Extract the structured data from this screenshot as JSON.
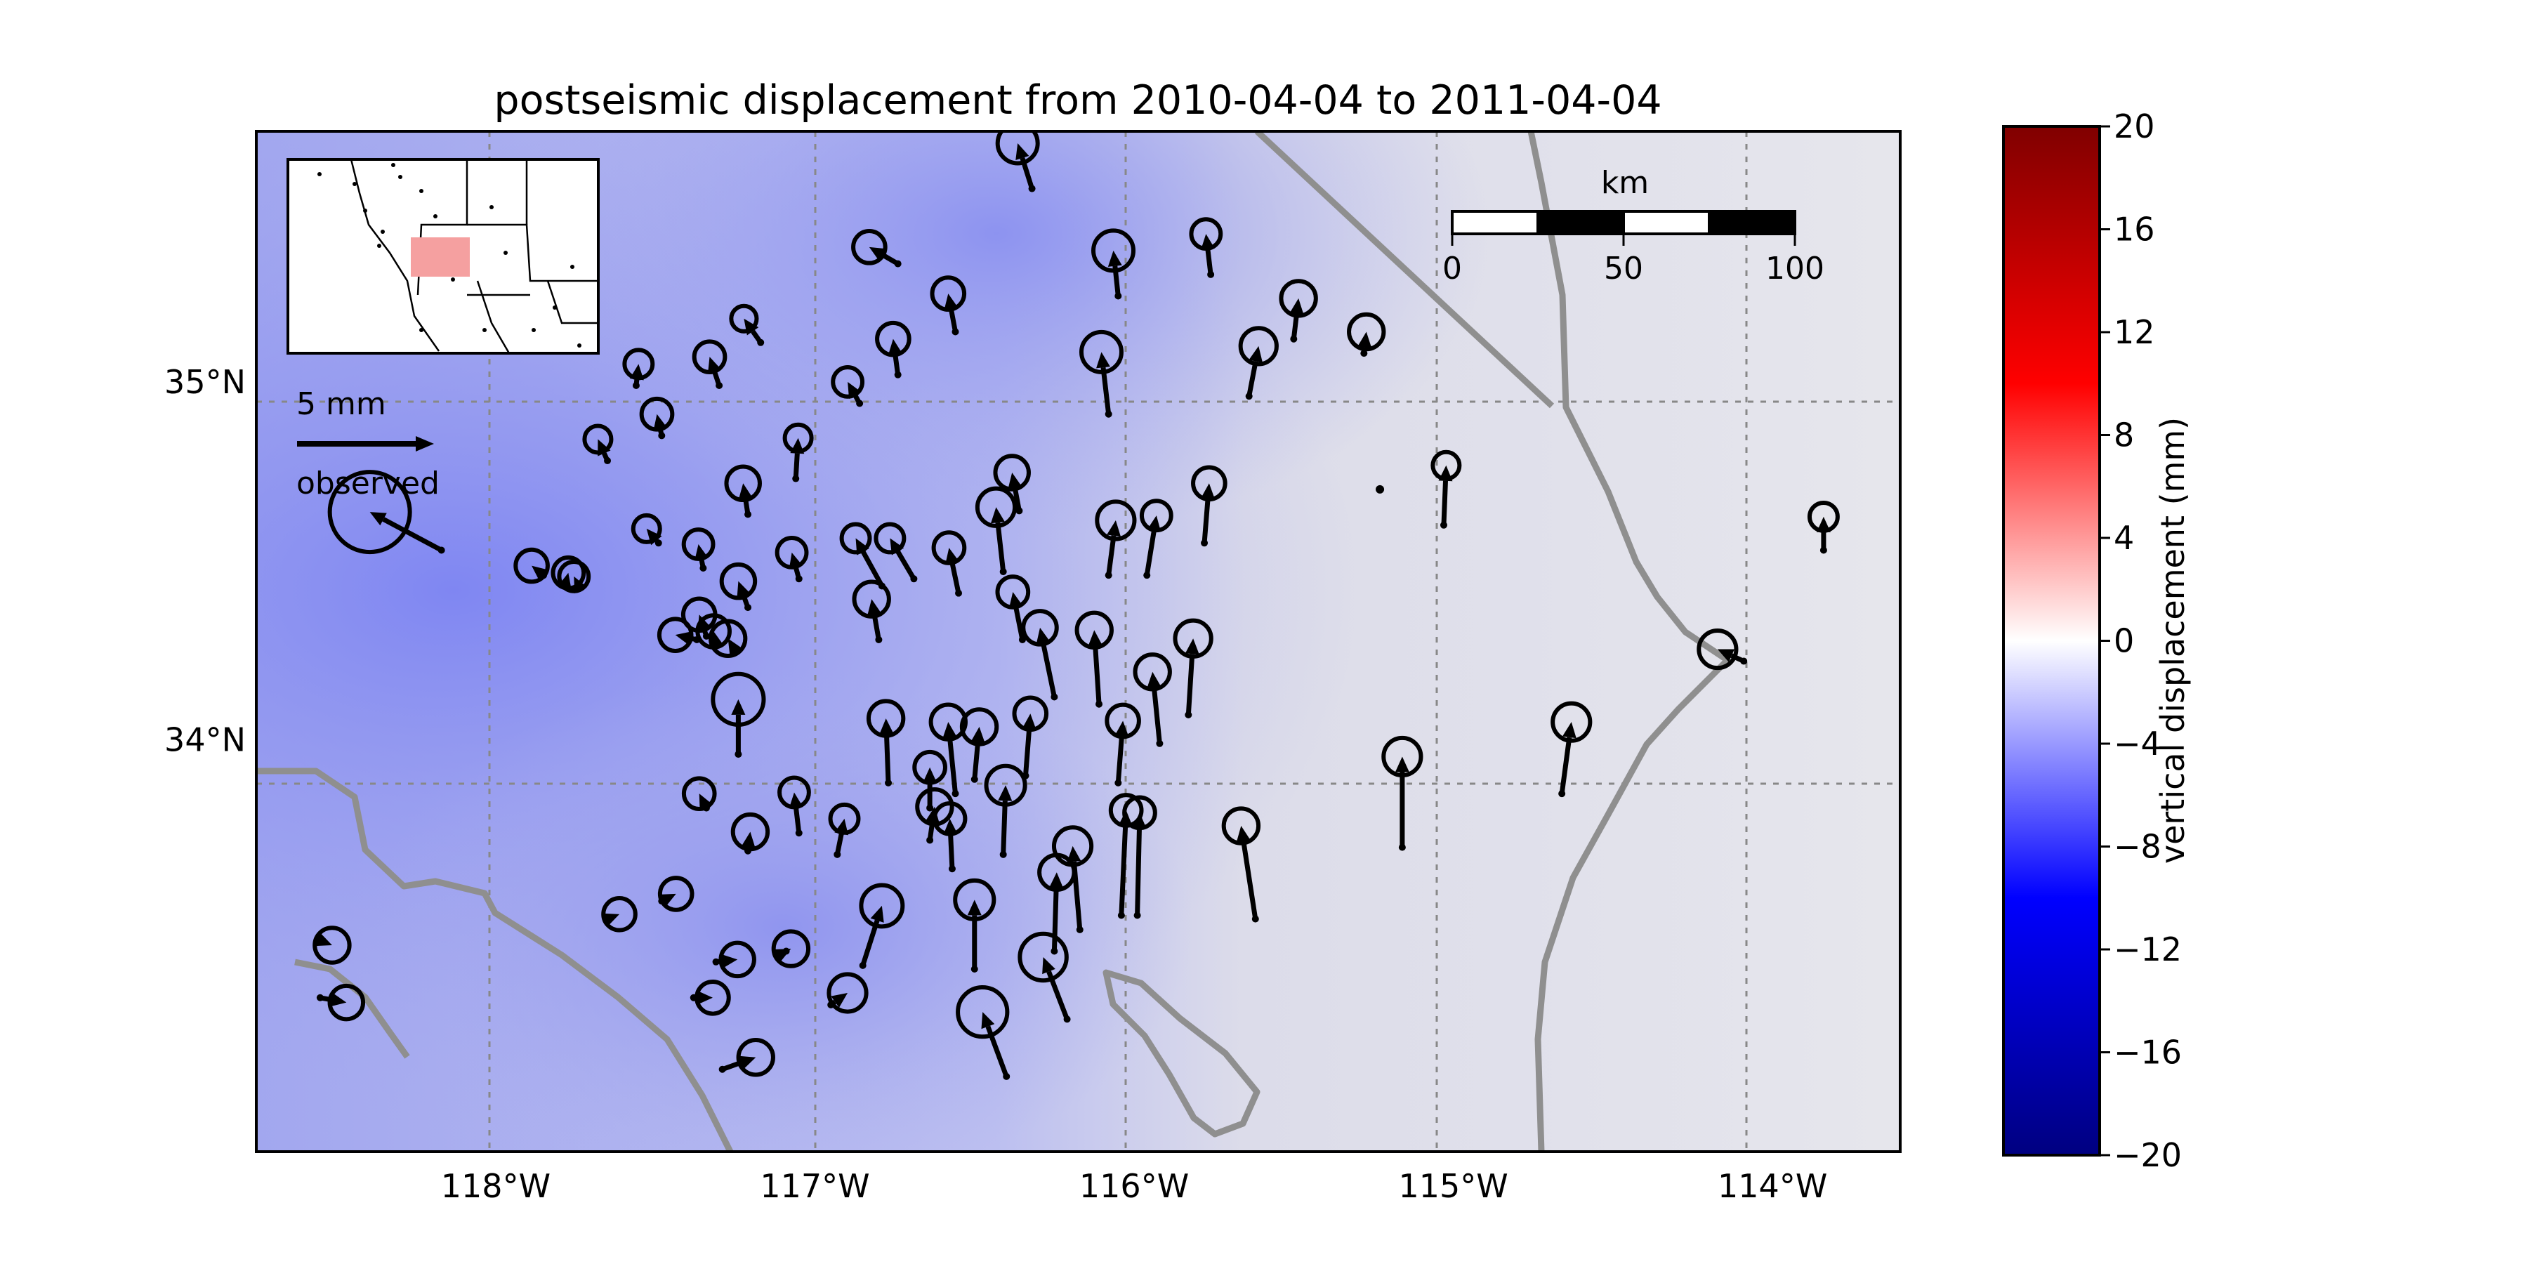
{
  "chart_data": {
    "type": "map-vector-field",
    "title": "postseismic displacement from 2010-04-04 to 2011-04-04",
    "map_extent": {
      "lon": [
        -118.75,
        -113.6
      ],
      "lat": [
        32.85,
        35.7
      ]
    },
    "x_ticks": [
      {
        "lon": -118,
        "label": "118°W"
      },
      {
        "lon": -117,
        "label": "117°W"
      },
      {
        "lon": -116,
        "label": "116°W"
      },
      {
        "lon": -115,
        "label": "115°W"
      },
      {
        "lon": -114,
        "label": "114°W"
      }
    ],
    "y_ticks": [
      {
        "lat": 35,
        "label": "35°N"
      },
      {
        "lat": 34,
        "label": "34°N"
      }
    ],
    "grid": true,
    "scale_bar": {
      "title": "km",
      "labels": [
        "0",
        "50",
        "100"
      ]
    },
    "key": {
      "length_label": "5 mm",
      "series_label": "observed",
      "magnitude_mm": 5,
      "placement": "upper-left"
    },
    "inset_map": {
      "placement": "upper-left",
      "highlight_color": "#f5a0a0"
    },
    "colorbar": {
      "label": "vertical displacement (mm)",
      "ticks": [
        "20",
        "16",
        "12",
        "8",
        "4",
        "0",
        "−4",
        "−8",
        "−12",
        "−16",
        "−20"
      ],
      "range": [
        -20,
        20
      ],
      "colormap": "seismic"
    },
    "stations": [
      {
        "lon": -116.32,
        "lat": 35.54,
        "e": -0.6,
        "n": 1.9,
        "up": -3.0
      },
      {
        "lon": -116.74,
        "lat": 35.33,
        "e": -1.2,
        "n": 0.7,
        "up": -2.4
      },
      {
        "lon": -116.56,
        "lat": 35.14,
        "e": -0.3,
        "n": 1.6,
        "up": -2.4
      },
      {
        "lon": -115.76,
        "lat": 35.3,
        "e": -0.2,
        "n": 1.7,
        "up": -2.2
      },
      {
        "lon": -115.5,
        "lat": 35.12,
        "e": 0.2,
        "n": 1.7,
        "up": -2.6
      },
      {
        "lon": -117.17,
        "lat": 35.11,
        "e": -0.7,
        "n": 1.0,
        "up": -1.9
      },
      {
        "lon": -116.74,
        "lat": 35.02,
        "e": -0.2,
        "n": 1.5,
        "up": -2.4
      },
      {
        "lon": -117.3,
        "lat": 34.99,
        "e": -0.4,
        "n": 1.2,
        "up": -2.3
      },
      {
        "lon": -116.08,
        "lat": 34.91,
        "e": -0.3,
        "n": 2.6,
        "up": -3.0
      },
      {
        "lon": -115.64,
        "lat": 34.96,
        "e": 0.4,
        "n": 2.1,
        "up": -2.7
      },
      {
        "lon": -116.86,
        "lat": 34.94,
        "e": -0.5,
        "n": 0.9,
        "up": -2.2
      },
      {
        "lon": -117.56,
        "lat": 34.99,
        "e": 0.1,
        "n": 0.9,
        "up": -2.1
      },
      {
        "lon": -117.48,
        "lat": 34.85,
        "e": -0.2,
        "n": 0.9,
        "up": -2.3
      },
      {
        "lon": -117.65,
        "lat": 34.78,
        "e": -0.4,
        "n": 0.9,
        "up": -2.0
      },
      {
        "lon": -117.06,
        "lat": 34.73,
        "e": 0.1,
        "n": 1.7,
        "up": -2.0
      },
      {
        "lon": -117.21,
        "lat": 34.63,
        "e": -0.2,
        "n": 1.3,
        "up": -2.5
      },
      {
        "lon": -116.36,
        "lat": 34.64,
        "e": -0.3,
        "n": 1.6,
        "up": -2.5
      },
      {
        "lon": -115.03,
        "lat": 34.6,
        "e": 0.1,
        "n": 2.5,
        "up": -2.0
      },
      {
        "lon": -113.84,
        "lat": 34.53,
        "e": 0.0,
        "n": 1.4,
        "up": -2.1
      },
      {
        "lon": -118.17,
        "lat": 34.53,
        "e": -3.0,
        "n": 1.6,
        "up": -6.0
      },
      {
        "lon": -117.49,
        "lat": 34.55,
        "e": -0.5,
        "n": 0.6,
        "up": -2.0
      },
      {
        "lon": -115.78,
        "lat": 34.55,
        "e": 0.2,
        "n": 2.5,
        "up": -2.4
      },
      {
        "lon": -117.85,
        "lat": 34.46,
        "e": -0.5,
        "n": 0.4,
        "up": -2.4
      },
      {
        "lon": -117.78,
        "lat": 34.44,
        "e": 0.1,
        "n": 0.4,
        "up": -2.3
      },
      {
        "lon": -117.74,
        "lat": 34.43,
        "e": -0.2,
        "n": 0.4,
        "up": -2.2
      },
      {
        "lon": -117.05,
        "lat": 34.45,
        "e": -0.3,
        "n": 1.1,
        "up": -2.2
      },
      {
        "lon": -117.35,
        "lat": 34.48,
        "e": -0.2,
        "n": 1.0,
        "up": -2.2
      },
      {
        "lon": -116.79,
        "lat": 34.43,
        "e": -1.1,
        "n": 2.0,
        "up": -2.1
      },
      {
        "lon": -116.69,
        "lat": 34.45,
        "e": -1.0,
        "n": 1.7,
        "up": -2.1
      },
      {
        "lon": -116.55,
        "lat": 34.41,
        "e": -0.4,
        "n": 1.9,
        "up": -2.3
      },
      {
        "lon": -116.08,
        "lat": 34.46,
        "e": 0.3,
        "n": 2.3,
        "up": -2.8
      },
      {
        "lon": -115.96,
        "lat": 34.46,
        "e": 0.4,
        "n": 2.5,
        "up": -2.2
      },
      {
        "lon": -116.41,
        "lat": 34.47,
        "e": -0.3,
        "n": 2.7,
        "up": -2.8
      },
      {
        "lon": -117.21,
        "lat": 34.37,
        "e": -0.4,
        "n": 1.1,
        "up": -2.5
      },
      {
        "lon": -116.8,
        "lat": 34.28,
        "e": -0.3,
        "n": 1.7,
        "up": -2.6
      },
      {
        "lon": -117.37,
        "lat": 34.28,
        "e": -0.9,
        "n": 0.2,
        "up": -2.4
      },
      {
        "lon": -117.34,
        "lat": 34.29,
        "e": -0.3,
        "n": 0.9,
        "up": -2.4
      },
      {
        "lon": -117.31,
        "lat": 34.27,
        "e": -0.1,
        "n": 0.5,
        "up": -2.4
      },
      {
        "lon": -117.25,
        "lat": 34.25,
        "e": -0.3,
        "n": 0.5,
        "up": -2.6
      },
      {
        "lon": -116.35,
        "lat": 34.28,
        "e": -0.4,
        "n": 2.0,
        "up": -2.3
      },
      {
        "lon": -114.09,
        "lat": 34.22,
        "e": -1.1,
        "n": 0.5,
        "up": -2.8
      },
      {
        "lon": -116.25,
        "lat": 34.12,
        "e": -0.6,
        "n": 2.9,
        "up": -2.5
      },
      {
        "lon": -116.11,
        "lat": 34.1,
        "e": -0.2,
        "n": 3.1,
        "up": -2.6
      },
      {
        "lon": -115.83,
        "lat": 34.07,
        "e": 0.2,
        "n": 3.2,
        "up": -2.7
      },
      {
        "lon": -115.92,
        "lat": 33.99,
        "e": -0.3,
        "n": 3.0,
        "up": -2.6
      },
      {
        "lon": -114.66,
        "lat": 33.85,
        "e": 0.4,
        "n": 3.0,
        "up": -2.8
      },
      {
        "lon": -117.24,
        "lat": 33.96,
        "e": 0.0,
        "n": 2.3,
        "up": -3.8
      },
      {
        "lon": -116.77,
        "lat": 33.88,
        "e": -0.1,
        "n": 2.7,
        "up": -2.6
      },
      {
        "lon": -116.5,
        "lat": 33.89,
        "e": 0.2,
        "n": 2.2,
        "up": -2.6
      },
      {
        "lon": -116.34,
        "lat": 33.9,
        "e": 0.2,
        "n": 2.6,
        "up": -2.4
      },
      {
        "lon": -116.05,
        "lat": 33.88,
        "e": 0.2,
        "n": 2.6,
        "up": -2.4
      },
      {
        "lon": -116.64,
        "lat": 33.81,
        "e": 0.0,
        "n": 1.7,
        "up": -2.3
      },
      {
        "lon": -116.56,
        "lat": 33.85,
        "e": -0.3,
        "n": 3.0,
        "up": -2.6
      },
      {
        "lon": -117.34,
        "lat": 33.81,
        "e": -0.3,
        "n": 0.6,
        "up": -2.3
      },
      {
        "lon": -117.05,
        "lat": 33.74,
        "e": -0.2,
        "n": 1.7,
        "up": -2.2
      },
      {
        "lon": -116.93,
        "lat": 33.68,
        "e": 0.3,
        "n": 1.5,
        "up": -2.1
      },
      {
        "lon": -117.21,
        "lat": 33.69,
        "e": 0.1,
        "n": 0.8,
        "up": -2.6
      },
      {
        "lon": -115.16,
        "lat": 33.7,
        "e": 0.0,
        "n": 3.8,
        "up": -2.8
      },
      {
        "lon": -116.64,
        "lat": 33.72,
        "e": 0.2,
        "n": 1.4,
        "up": -2.6
      },
      {
        "lon": -116.57,
        "lat": 33.64,
        "e": -0.1,
        "n": 2.1,
        "up": -2.3
      },
      {
        "lon": -116.41,
        "lat": 33.68,
        "e": 0.1,
        "n": 2.9,
        "up": -2.9
      },
      {
        "lon": -115.62,
        "lat": 33.5,
        "e": -0.6,
        "n": 3.9,
        "up": -2.6
      },
      {
        "lon": -116.04,
        "lat": 33.51,
        "e": 0.2,
        "n": 4.4,
        "up": -2.3
      },
      {
        "lon": -115.99,
        "lat": 33.51,
        "e": 0.1,
        "n": 4.3,
        "up": -2.3
      },
      {
        "lon": -116.17,
        "lat": 33.47,
        "e": -0.3,
        "n": 3.5,
        "up": -2.8
      },
      {
        "lon": -117.48,
        "lat": 33.55,
        "e": 0.6,
        "n": 0.3,
        "up": -2.4
      },
      {
        "lon": -117.65,
        "lat": 33.5,
        "e": 0.5,
        "n": 0.2,
        "up": -2.4
      },
      {
        "lon": -116.25,
        "lat": 33.41,
        "e": 0.1,
        "n": 3.3,
        "up": -2.6
      },
      {
        "lon": -116.5,
        "lat": 33.36,
        "e": 0.0,
        "n": 2.9,
        "up": -2.9
      },
      {
        "lon": -116.85,
        "lat": 33.37,
        "e": 0.8,
        "n": 2.5,
        "up": -3.1
      },
      {
        "lon": -117.09,
        "lat": 33.41,
        "e": 0.2,
        "n": 0.1,
        "up": -2.6
      },
      {
        "lon": -117.31,
        "lat": 33.38,
        "e": 0.9,
        "n": 0.1,
        "up": -2.5
      },
      {
        "lon": -117.38,
        "lat": 33.28,
        "e": 0.8,
        "n": 0.0,
        "up": -2.4
      },
      {
        "lon": -116.95,
        "lat": 33.26,
        "e": 0.7,
        "n": 0.5,
        "up": -2.8
      },
      {
        "lon": -116.21,
        "lat": 33.22,
        "e": -1.0,
        "n": 2.6,
        "up": -3.5
      },
      {
        "lon": -118.55,
        "lat": 33.44,
        "e": 0.5,
        "n": -0.2,
        "up": -2.6
      },
      {
        "lon": -118.55,
        "lat": 33.28,
        "e": 1.1,
        "n": -0.2,
        "up": -2.5
      },
      {
        "lon": -117.29,
        "lat": 33.08,
        "e": 1.4,
        "n": 0.5,
        "up": -2.6
      },
      {
        "lon": -116.4,
        "lat": 33.06,
        "e": -1.0,
        "n": 2.7,
        "up": -3.7
      },
      {
        "lon": -115.28,
        "lat": 35.08,
        "e": 0.1,
        "n": 0.9,
        "up": -2.6
      },
      {
        "lon": -116.05,
        "lat": 35.24,
        "e": -0.2,
        "n": 1.9,
        "up": -3.0
      },
      {
        "lon": -115.23,
        "lat": 34.7,
        "e": 0.0,
        "n": 0.0,
        "up": 0.0
      }
    ]
  }
}
